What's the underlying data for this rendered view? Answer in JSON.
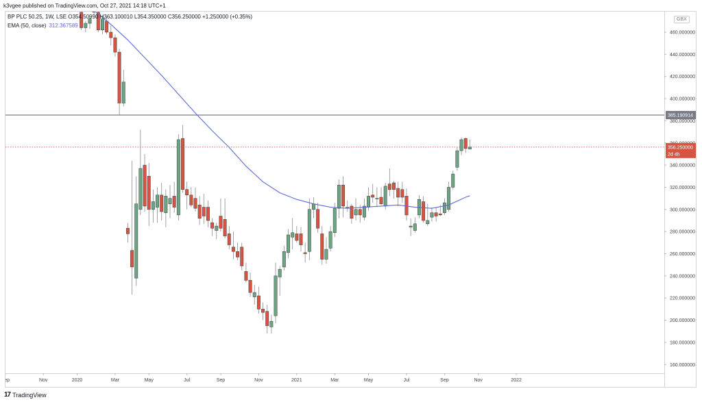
{
  "header": {
    "published": "k3vgee published on TradingView.com, Oct 27, 2021 14:18 UTC+1",
    "symbol_line": "BP PLC  50.25, 1W, LSE  O354.50990  H363.100010  L354.350000  C356.250000  +1.250000 (+0.35%)",
    "ema_label": "EMA (50, close)",
    "ema_value": "312.367589",
    "currency": "GBX"
  },
  "footer": {
    "logo_mark": "17",
    "brand": "TradingView"
  },
  "colors": {
    "up": "#6ba583",
    "down": "#d75442",
    "ema": "#5b6bd6",
    "hline": "#787b86",
    "price_line": "#d75442"
  },
  "chart_data": {
    "type": "candlestick",
    "title": "BP PLC",
    "interval": "1W",
    "exchange": "LSE",
    "ylim": [
      145,
      478
    ],
    "y_ticks": [
      "460.000000",
      "440.000000",
      "420.000000",
      "400.000000",
      "380.000000",
      "360.000000",
      "340.000000",
      "320.000000",
      "300.000000",
      "280.000000",
      "260.000000",
      "240.000000",
      "220.000000",
      "200.000000",
      "180.000000",
      "160.000000"
    ],
    "y_tick_values": [
      460,
      440,
      420,
      400,
      380,
      360,
      340,
      320,
      300,
      280,
      260,
      240,
      220,
      200,
      180,
      160
    ],
    "x_ticks": [
      "Sep",
      "Nov",
      "2020",
      "Mar",
      "May",
      "Jul",
      "Sep",
      "Nov",
      "2021",
      "Mar",
      "May",
      "Jul",
      "Sep",
      "Nov",
      "2022"
    ],
    "x_tick_week_index": [
      -17,
      -8,
      0,
      9,
      17,
      26,
      34,
      43,
      52,
      61,
      69,
      78,
      87,
      95,
      104
    ],
    "horizontal_line": {
      "value": 385.190914,
      "label": "385.190914"
    },
    "last_price": {
      "value": 356.25,
      "label": "356.250000",
      "countdown": "2d 4h"
    },
    "candles": [
      {
        "o": 500,
        "h": 510,
        "l": 480,
        "c": 485
      },
      {
        "o": 478,
        "h": 482,
        "l": 462,
        "c": 464
      },
      {
        "o": 464,
        "h": 470,
        "l": 460,
        "c": 468
      },
      {
        "o": 468,
        "h": 474,
        "l": 463,
        "c": 472
      },
      {
        "o": 482,
        "h": 490,
        "l": 476,
        "c": 478
      },
      {
        "o": 478,
        "h": 484,
        "l": 460,
        "c": 462
      },
      {
        "o": 462,
        "h": 475,
        "l": 458,
        "c": 472
      },
      {
        "o": 470,
        "h": 474,
        "l": 458,
        "c": 460
      },
      {
        "o": 460,
        "h": 466,
        "l": 448,
        "c": 455
      },
      {
        "o": 455,
        "h": 458,
        "l": 438,
        "c": 442
      },
      {
        "o": 442,
        "h": 445,
        "l": 385,
        "c": 396
      },
      {
        "o": 396,
        "h": 426,
        "l": 393,
        "c": 415
      },
      {
        "o": 283,
        "h": 288,
        "l": 270,
        "c": 278
      },
      {
        "o": 263,
        "h": 344,
        "l": 223,
        "c": 248
      },
      {
        "o": 238,
        "h": 330,
        "l": 231,
        "c": 305
      },
      {
        "o": 300,
        "h": 372,
        "l": 295,
        "c": 337
      },
      {
        "o": 340,
        "h": 350,
        "l": 298,
        "c": 303
      },
      {
        "o": 330,
        "h": 342,
        "l": 285,
        "c": 300
      },
      {
        "o": 300,
        "h": 318,
        "l": 288,
        "c": 307
      },
      {
        "o": 302,
        "h": 320,
        "l": 288,
        "c": 313
      },
      {
        "o": 313,
        "h": 324,
        "l": 290,
        "c": 298
      },
      {
        "o": 297,
        "h": 318,
        "l": 284,
        "c": 312
      },
      {
        "o": 305,
        "h": 322,
        "l": 292,
        "c": 310
      },
      {
        "o": 312,
        "h": 325,
        "l": 297,
        "c": 302
      },
      {
        "o": 295,
        "h": 368,
        "l": 290,
        "c": 363
      },
      {
        "o": 364,
        "h": 376,
        "l": 315,
        "c": 318
      },
      {
        "o": 318,
        "h": 325,
        "l": 300,
        "c": 313
      },
      {
        "o": 313,
        "h": 320,
        "l": 302,
        "c": 304
      },
      {
        "o": 310,
        "h": 320,
        "l": 298,
        "c": 301
      },
      {
        "o": 304,
        "h": 312,
        "l": 286,
        "c": 292
      },
      {
        "o": 302,
        "h": 314,
        "l": 287,
        "c": 294
      },
      {
        "o": 302,
        "h": 308,
        "l": 284,
        "c": 290
      },
      {
        "o": 288,
        "h": 292,
        "l": 276,
        "c": 283
      },
      {
        "o": 281,
        "h": 288,
        "l": 273,
        "c": 285
      },
      {
        "o": 294,
        "h": 310,
        "l": 280,
        "c": 283
      },
      {
        "o": 291,
        "h": 310,
        "l": 274,
        "c": 276
      },
      {
        "o": 278,
        "h": 285,
        "l": 264,
        "c": 268
      },
      {
        "o": 266,
        "h": 280,
        "l": 255,
        "c": 262
      },
      {
        "o": 262,
        "h": 270,
        "l": 254,
        "c": 257
      },
      {
        "o": 266,
        "h": 270,
        "l": 245,
        "c": 249
      },
      {
        "o": 244,
        "h": 252,
        "l": 234,
        "c": 236
      },
      {
        "o": 236,
        "h": 243,
        "l": 221,
        "c": 225
      },
      {
        "o": 221,
        "h": 232,
        "l": 214,
        "c": 225
      },
      {
        "o": 222,
        "h": 230,
        "l": 206,
        "c": 210
      },
      {
        "o": 210,
        "h": 216,
        "l": 200,
        "c": 207
      },
      {
        "o": 208,
        "h": 214,
        "l": 188,
        "c": 195
      },
      {
        "o": 194,
        "h": 205,
        "l": 188,
        "c": 199
      },
      {
        "o": 204,
        "h": 252,
        "l": 197,
        "c": 240
      },
      {
        "o": 239,
        "h": 249,
        "l": 222,
        "c": 246
      },
      {
        "o": 248,
        "h": 267,
        "l": 245,
        "c": 262
      },
      {
        "o": 261,
        "h": 282,
        "l": 256,
        "c": 277
      },
      {
        "o": 275,
        "h": 292,
        "l": 264,
        "c": 279
      },
      {
        "o": 278,
        "h": 285,
        "l": 270,
        "c": 272
      },
      {
        "o": 278,
        "h": 284,
        "l": 262,
        "c": 268
      },
      {
        "o": 261,
        "h": 270,
        "l": 252,
        "c": 260
      },
      {
        "o": 262,
        "h": 310,
        "l": 254,
        "c": 300
      },
      {
        "o": 300,
        "h": 311,
        "l": 292,
        "c": 305
      },
      {
        "o": 300,
        "h": 306,
        "l": 279,
        "c": 283
      },
      {
        "o": 278,
        "h": 285,
        "l": 250,
        "c": 255
      },
      {
        "o": 255,
        "h": 275,
        "l": 251,
        "c": 264
      },
      {
        "o": 265,
        "h": 285,
        "l": 262,
        "c": 280
      },
      {
        "o": 279,
        "h": 306,
        "l": 275,
        "c": 301
      },
      {
        "o": 301,
        "h": 327,
        "l": 292,
        "c": 322
      },
      {
        "o": 322,
        "h": 330,
        "l": 293,
        "c": 303
      },
      {
        "o": 301,
        "h": 308,
        "l": 298,
        "c": 302
      },
      {
        "o": 303,
        "h": 305,
        "l": 287,
        "c": 292
      },
      {
        "o": 295,
        "h": 310,
        "l": 290,
        "c": 300
      },
      {
        "o": 300,
        "h": 304,
        "l": 288,
        "c": 295
      },
      {
        "o": 293,
        "h": 310,
        "l": 290,
        "c": 303
      },
      {
        "o": 302,
        "h": 320,
        "l": 299,
        "c": 312
      },
      {
        "o": 313,
        "h": 323,
        "l": 306,
        "c": 311
      },
      {
        "o": 310,
        "h": 320,
        "l": 302,
        "c": 310
      },
      {
        "o": 311,
        "h": 320,
        "l": 304,
        "c": 305
      },
      {
        "o": 303,
        "h": 324,
        "l": 300,
        "c": 321
      },
      {
        "o": 323,
        "h": 337,
        "l": 312,
        "c": 318
      },
      {
        "o": 324,
        "h": 326,
        "l": 310,
        "c": 318
      },
      {
        "o": 319,
        "h": 325,
        "l": 303,
        "c": 311
      },
      {
        "o": 318,
        "h": 325,
        "l": 306,
        "c": 311
      },
      {
        "o": 312,
        "h": 319,
        "l": 290,
        "c": 295
      },
      {
        "o": 284,
        "h": 292,
        "l": 276,
        "c": 285
      },
      {
        "o": 281,
        "h": 293,
        "l": 279,
        "c": 287
      },
      {
        "o": 295,
        "h": 313,
        "l": 292,
        "c": 309
      },
      {
        "o": 307,
        "h": 312,
        "l": 288,
        "c": 290
      },
      {
        "o": 287,
        "h": 305,
        "l": 285,
        "c": 290
      },
      {
        "o": 293,
        "h": 302,
        "l": 289,
        "c": 297
      },
      {
        "o": 297,
        "h": 302,
        "l": 289,
        "c": 294
      },
      {
        "o": 296,
        "h": 304,
        "l": 294,
        "c": 295
      },
      {
        "o": 297,
        "h": 310,
        "l": 295,
        "c": 306
      },
      {
        "o": 300,
        "h": 325,
        "l": 298,
        "c": 320
      },
      {
        "o": 320,
        "h": 335,
        "l": 318,
        "c": 332
      },
      {
        "o": 338,
        "h": 356,
        "l": 335,
        "c": 353
      },
      {
        "o": 353,
        "h": 365,
        "l": 349,
        "c": 363
      },
      {
        "o": 364,
        "h": 365,
        "l": 351,
        "c": 355
      },
      {
        "o": 354.5,
        "h": 363.1,
        "l": 354.35,
        "c": 356.25
      }
    ],
    "ema_series": {
      "name": "EMA (50, close)",
      "x": [
        4.5,
        8,
        12,
        16,
        20,
        24,
        28,
        32,
        36,
        40,
        44,
        48,
        52,
        56,
        60,
        64,
        68,
        72,
        76,
        80,
        84,
        88,
        92,
        93
      ],
      "y": [
        478,
        467,
        453,
        437,
        421,
        404,
        387,
        371,
        356,
        339,
        325,
        315,
        309,
        305,
        302,
        301,
        302,
        303,
        304,
        302,
        301,
        304,
        311,
        312.37
      ]
    }
  }
}
